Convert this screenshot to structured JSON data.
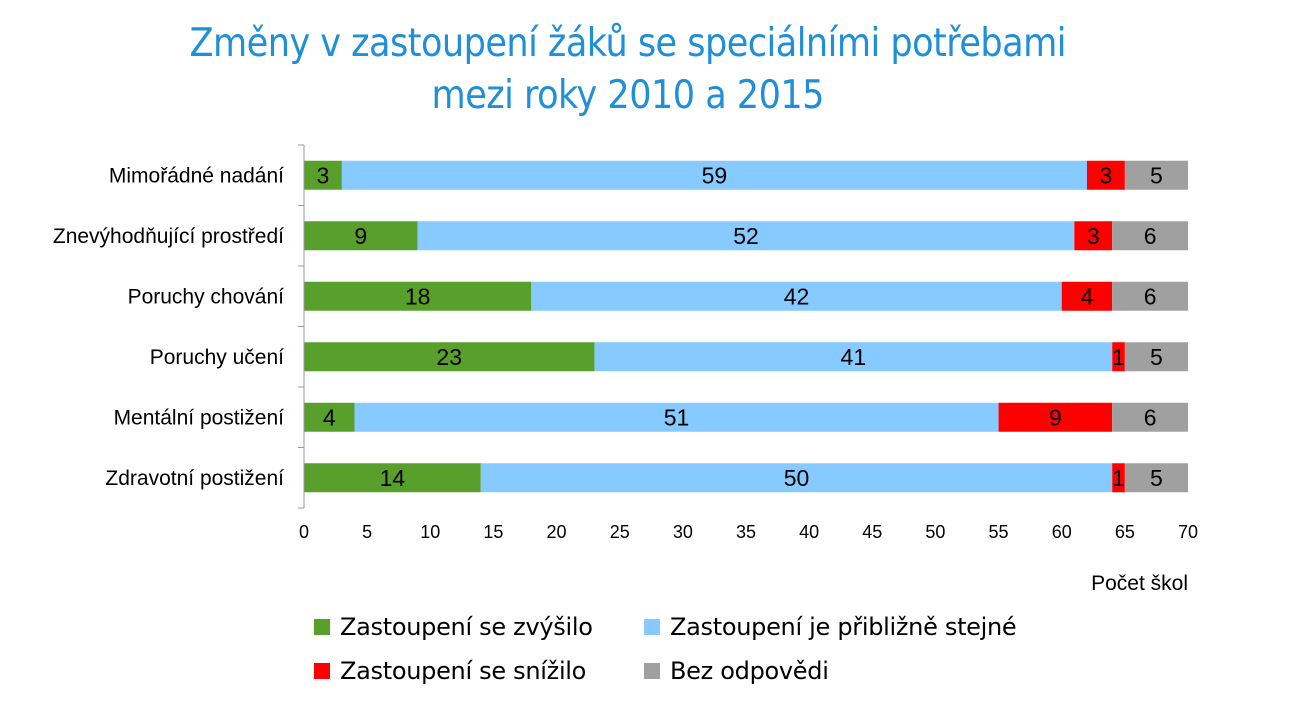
{
  "chart_data": {
    "type": "bar",
    "orientation": "horizontal",
    "stacked": true,
    "title_lines": [
      "Změny v zastoupení žáků se speciálními potřebami",
      "mezi roky 2010 a 2015"
    ],
    "categories": [
      "Mimořádné nadání",
      "Znevýhodňující prostředí",
      "Poruchy chování",
      "Poruchy učení",
      "Mentální postižení",
      "Zdravotní postižení"
    ],
    "series": [
      {
        "name": "Zastoupení se zvýšilo",
        "color": "#58a02b",
        "values": [
          3,
          9,
          18,
          23,
          4,
          14
        ]
      },
      {
        "name": "Zastoupení je přibližně stejné",
        "color": "#86caff",
        "values": [
          59,
          52,
          42,
          41,
          51,
          50
        ]
      },
      {
        "name": "Zastoupení se snížilo",
        "color": "#ff0000",
        "values": [
          3,
          3,
          4,
          1,
          9,
          1
        ]
      },
      {
        "name": "Bez odpovědi",
        "color": "#a0a0a0",
        "values": [
          5,
          6,
          6,
          5,
          6,
          5
        ]
      }
    ],
    "xlabel": "Počet škol",
    "xlim": [
      0,
      70
    ],
    "xticks": [
      0,
      5,
      10,
      15,
      20,
      25,
      30,
      35,
      40,
      45,
      50,
      55,
      60,
      65,
      70
    ],
    "grid": false,
    "legend_position": "bottom",
    "legend_order": [
      0,
      1,
      2,
      3
    ]
  }
}
